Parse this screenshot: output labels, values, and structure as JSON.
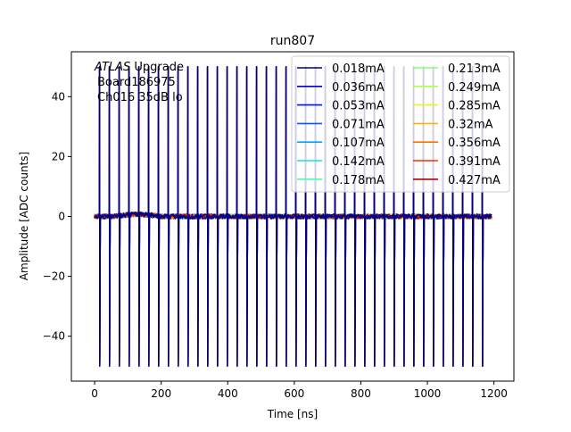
{
  "chart_data": {
    "type": "line",
    "title": "run807",
    "xlabel": "Time [ns]",
    "ylabel": "Amplitude [ADC counts]",
    "xlim": [
      -70,
      1260
    ],
    "ylim": [
      -55,
      55
    ],
    "xticks": [
      0,
      200,
      400,
      600,
      800,
      1000,
      1200
    ],
    "yticks": [
      -40,
      -20,
      0,
      20,
      40
    ],
    "grid": false,
    "legend": {
      "placement": "top-right",
      "columns": 2
    },
    "annotation": {
      "italic_part": "ATLAS",
      "rest": " Upgrade",
      "line2": "Board186975",
      "line3": "Ch016 35dB lo"
    },
    "pulse": {
      "first_peak_time": 15,
      "period": 29.5,
      "count": 40,
      "max_time": 1195,
      "positive_peak": 50,
      "negative_peak": -50,
      "baseline": 0
    },
    "series": [
      {
        "name": "0.018mA",
        "color": "#00007f"
      },
      {
        "name": "0.036mA",
        "color": "#0000c8"
      },
      {
        "name": "0.053mA",
        "color": "#0010ff"
      },
      {
        "name": "0.071mA",
        "color": "#0058ff"
      },
      {
        "name": "0.107mA",
        "color": "#00a4ff"
      },
      {
        "name": "0.142mA",
        "color": "#14e6e2"
      },
      {
        "name": "0.178mA",
        "color": "#4cffaa"
      },
      {
        "name": "0.213mA",
        "color": "#7fff7b"
      },
      {
        "name": "0.249mA",
        "color": "#b0ff46"
      },
      {
        "name": "0.285mA",
        "color": "#e4f80f"
      },
      {
        "name": "0.32mA",
        "color": "#ffb200"
      },
      {
        "name": "0.356mA",
        "color": "#ff6f00"
      },
      {
        "name": "0.391mA",
        "color": "#ff2e00"
      },
      {
        "name": "0.427mA",
        "color": "#b20000"
      }
    ]
  }
}
